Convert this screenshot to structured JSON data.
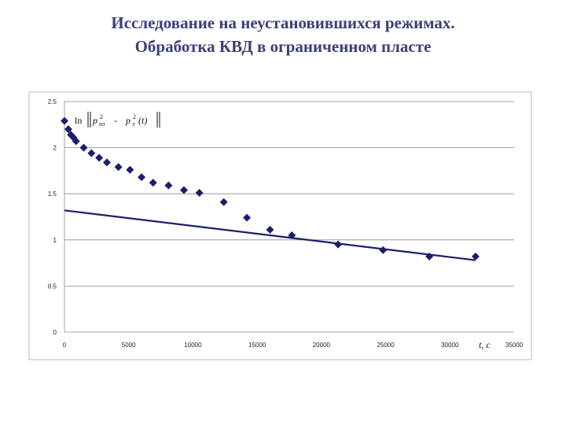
{
  "title_line1": "Исследование на неустановившихся режимах.",
  "title_line2": "Обработка КВД в ограниченном пласте",
  "colors": {
    "title": "#3a3f7a",
    "series": "#1a1f6b",
    "grid": "#8a8a8a"
  },
  "chart_data": {
    "type": "scatter",
    "title": "",
    "xlabel": "t, c",
    "ylabel": "ln|p_пл^2 - p_з^2(t)|",
    "xlim": [
      0,
      35000
    ],
    "ylim": [
      0,
      2.5
    ],
    "xticks": [
      0,
      5000,
      10000,
      15000,
      20000,
      25000,
      30000,
      35000
    ],
    "yticks": [
      0,
      0.5,
      1,
      1.5,
      2,
      2.5
    ],
    "xtick_labels": [
      "0",
      "5000",
      "10000",
      "15000",
      "20000",
      "25000",
      "30000",
      "35000"
    ],
    "ytick_labels": [
      "0",
      "0.5",
      "1",
      "1.5",
      "2",
      "2.5"
    ],
    "grid": "horizontal",
    "legend": "none",
    "series": [
      {
        "type": "scatter",
        "marker": "diamond",
        "x": [
          0,
          300,
          500,
          700,
          900,
          1500,
          2100,
          2700,
          3300,
          4200,
          5100,
          6000,
          6900,
          8100,
          9300,
          10500,
          12400,
          14200,
          16000,
          17700,
          21300,
          24800,
          28400,
          32000
        ],
        "y": [
          2.29,
          2.2,
          2.14,
          2.11,
          2.07,
          2.0,
          1.94,
          1.89,
          1.84,
          1.79,
          1.76,
          1.68,
          1.62,
          1.59,
          1.54,
          1.51,
          1.41,
          1.24,
          1.11,
          1.05,
          0.95,
          0.89,
          0.82,
          0.82
        ]
      },
      {
        "type": "line",
        "x": [
          0,
          32000
        ],
        "y": [
          1.32,
          0.78
        ]
      }
    ]
  }
}
